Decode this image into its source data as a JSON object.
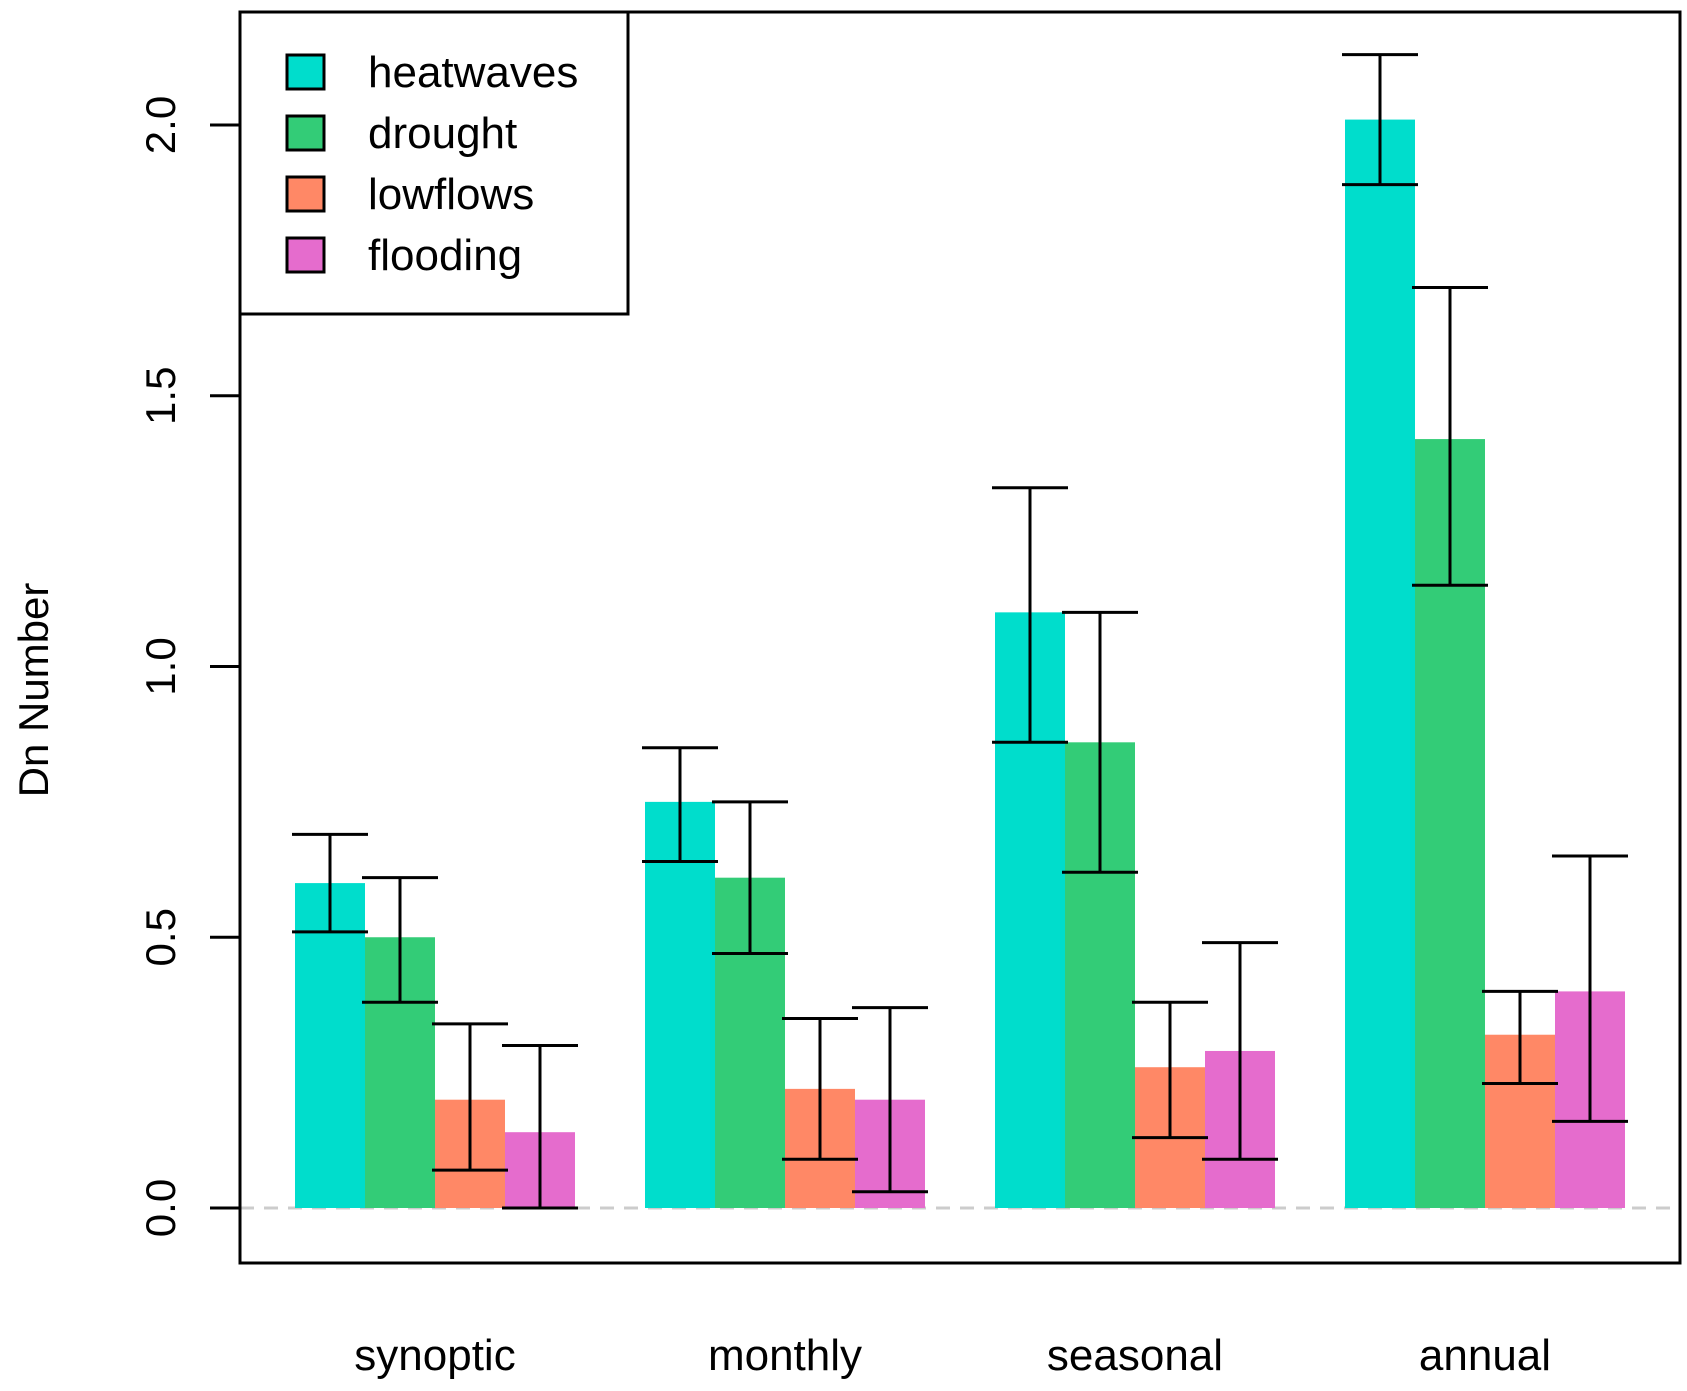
{
  "chart_data": {
    "type": "bar",
    "title": "",
    "xlabel": "",
    "ylabel": "Dn Number",
    "ylim": [
      -0.1,
      2.2
    ],
    "yticks": [
      "0.0",
      "0.5",
      "1.0",
      "1.5",
      "2.0"
    ],
    "ytick_values": [
      0.0,
      0.5,
      1.0,
      1.5,
      2.0
    ],
    "categories": [
      "synoptic",
      "monthly",
      "seasonal",
      "annual"
    ],
    "legend_position": "top-left",
    "baseline": 0.0,
    "series": [
      {
        "name": "heatwaves",
        "color": "#00DDCC",
        "values": [
          0.6,
          0.75,
          1.1,
          2.01
        ],
        "err_low": [
          0.51,
          0.64,
          0.86,
          1.89
        ],
        "err_high": [
          0.69,
          0.85,
          1.33,
          2.13
        ]
      },
      {
        "name": "drought",
        "color": "#33CC77",
        "values": [
          0.5,
          0.61,
          0.86,
          1.42
        ],
        "err_low": [
          0.38,
          0.47,
          0.62,
          1.15
        ],
        "err_high": [
          0.61,
          0.75,
          1.1,
          1.7
        ]
      },
      {
        "name": "lowflows",
        "color": "#FF8866",
        "values": [
          0.2,
          0.22,
          0.26,
          0.32
        ],
        "err_low": [
          0.07,
          0.09,
          0.13,
          0.23
        ],
        "err_high": [
          0.34,
          0.35,
          0.38,
          0.4
        ]
      },
      {
        "name": "flooding",
        "color": "#E56CCD",
        "values": [
          0.14,
          0.2,
          0.29,
          0.4
        ],
        "err_low": [
          0.0,
          0.03,
          0.09,
          0.16
        ],
        "err_high": [
          0.3,
          0.37,
          0.49,
          0.65
        ]
      }
    ]
  }
}
